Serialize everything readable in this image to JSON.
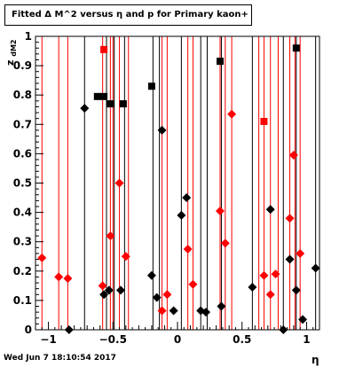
{
  "title": "Fitted Δ M^2 versus η and p for Primary kaon+",
  "footer_timestamp": "Wed Jun  7 18:10:54 2017",
  "chart_data": {
    "type": "scatter",
    "xlabel": "η",
    "ylabel": "z",
    "ylabel_sub": "dM2",
    "xlim": [
      -1.1,
      1.1
    ],
    "ylim": [
      0,
      1
    ],
    "xticks": [
      -1,
      -0.5,
      0,
      0.5,
      1
    ],
    "xtick_labels": [
      "−1",
      "−0.5",
      "0",
      "0.5",
      "1"
    ],
    "yticks": [
      0,
      0.1,
      0.2,
      0.3,
      0.4,
      0.5,
      0.6,
      0.7,
      0.8,
      0.9,
      1
    ],
    "ytick_labels": [
      "0",
      "0.1",
      "0.2",
      "0.3",
      "0.4",
      "0.5",
      "0.6",
      "0.7",
      "0.8",
      "0.9",
      "1"
    ],
    "colors": {
      "series_red": "#ff0000",
      "series_black": "#000000"
    },
    "red_vertical_lines_x": [
      -1.05,
      -0.92,
      -0.85,
      -0.58,
      -0.52,
      -0.5,
      -0.45,
      -0.38,
      -0.12,
      -0.08,
      0.08,
      0.12,
      0.33,
      0.37,
      0.42,
      0.63,
      0.67,
      0.72,
      0.78,
      0.87,
      0.91,
      0.95
    ],
    "black_vertical_lines_x": [
      -0.72,
      -0.55,
      -0.49,
      -0.41,
      -0.19,
      -0.14,
      0.03,
      0.18,
      0.23,
      0.34,
      0.58,
      0.82,
      0.92,
      1.07
    ],
    "series": [
      {
        "marker": "diamond",
        "color": "red",
        "points": [
          [
            -1.05,
            0.245
          ],
          [
            -0.92,
            0.18
          ],
          [
            -0.85,
            0.175
          ],
          [
            -0.58,
            0.15
          ],
          [
            -0.52,
            0.32
          ],
          [
            -0.45,
            0.5
          ],
          [
            -0.4,
            0.25
          ],
          [
            -0.12,
            0.065
          ],
          [
            -0.08,
            0.12
          ],
          [
            0.08,
            0.275
          ],
          [
            0.12,
            0.155
          ],
          [
            0.33,
            0.405
          ],
          [
            0.37,
            0.295
          ],
          [
            0.42,
            0.735
          ],
          [
            0.67,
            0.185
          ],
          [
            0.72,
            0.12
          ],
          [
            0.76,
            0.19
          ],
          [
            0.87,
            0.38
          ],
          [
            0.9,
            0.595
          ],
          [
            0.95,
            0.26
          ]
        ]
      },
      {
        "marker": "square",
        "color": "red",
        "points": [
          [
            -0.57,
            0.955
          ],
          [
            0.67,
            0.71
          ]
        ]
      },
      {
        "marker": "diamond",
        "color": "black",
        "points": [
          [
            -0.84,
            0.0
          ],
          [
            -0.72,
            0.755
          ],
          [
            -0.57,
            0.12
          ],
          [
            -0.53,
            0.135
          ],
          [
            -0.44,
            0.135
          ],
          [
            -0.2,
            0.185
          ],
          [
            -0.16,
            0.11
          ],
          [
            -0.12,
            0.68
          ],
          [
            -0.03,
            0.065
          ],
          [
            0.03,
            0.39
          ],
          [
            0.07,
            0.45
          ],
          [
            0.18,
            0.065
          ],
          [
            0.22,
            0.06
          ],
          [
            0.34,
            0.08
          ],
          [
            0.58,
            0.145
          ],
          [
            0.72,
            0.41
          ],
          [
            0.82,
            0.0
          ],
          [
            0.87,
            0.24
          ],
          [
            0.92,
            0.135
          ],
          [
            0.97,
            0.035
          ],
          [
            1.07,
            0.21
          ]
        ]
      },
      {
        "marker": "square",
        "color": "black",
        "points": [
          [
            -0.62,
            0.795
          ],
          [
            -0.57,
            0.795
          ],
          [
            -0.52,
            0.77
          ],
          [
            -0.42,
            0.77
          ],
          [
            -0.2,
            0.83
          ],
          [
            0.33,
            0.915
          ],
          [
            0.92,
            0.96
          ]
        ]
      }
    ]
  }
}
